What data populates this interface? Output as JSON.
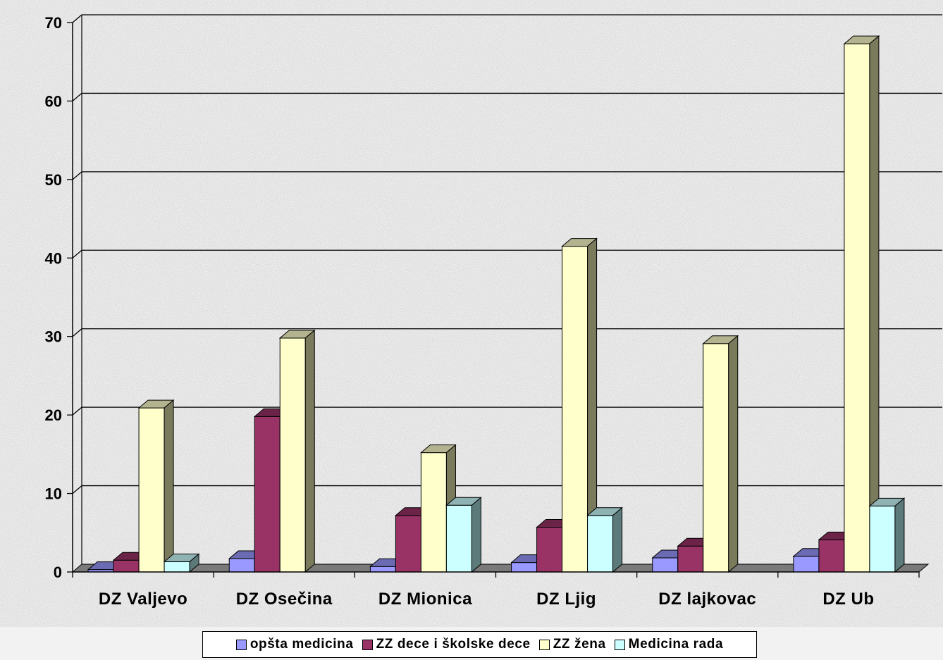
{
  "colors": {
    "series_front": [
      "#9999ff",
      "#993366",
      "#ffffcc",
      "#ccffff"
    ],
    "series_top": [
      "#6b6bb3",
      "#6b2447",
      "#b3b38f",
      "#8fb3b3"
    ],
    "series_side": [
      "#5c5c99",
      "#5c1f3d",
      "#7a7a5c",
      "#5c7a7a"
    ],
    "grid": "#000000",
    "floor": "#7a7a7a",
    "background": "#f2f2f2"
  },
  "chart_data": {
    "type": "bar",
    "title": "",
    "xlabel": "",
    "ylabel": "",
    "ylim": [
      0,
      70
    ],
    "yticks": [
      "0",
      "10",
      "20",
      "30",
      "40",
      "50",
      "60",
      "70"
    ],
    "grid": true,
    "legend_position": "bottom",
    "categories": [
      "DZ Valjevo",
      "DZ Osečina",
      "DZ Mionica",
      "DZ Ljig",
      "DZ lajkovac",
      "DZ Ub"
    ],
    "series": [
      {
        "name": "opšta medicina",
        "values": [
          0.3,
          1.7,
          0.7,
          1.2,
          1.8,
          2.0
        ]
      },
      {
        "name": "ZZ dece i školske dece",
        "values": [
          1.5,
          19.8,
          7.2,
          5.7,
          3.3,
          4.1
        ]
      },
      {
        "name": "ZZ žena",
        "values": [
          20.9,
          29.8,
          15.2,
          41.5,
          29.1,
          67.3
        ]
      },
      {
        "name": "Medicina rada",
        "values": [
          1.3,
          0,
          8.5,
          7.2,
          0,
          8.4
        ]
      }
    ]
  }
}
